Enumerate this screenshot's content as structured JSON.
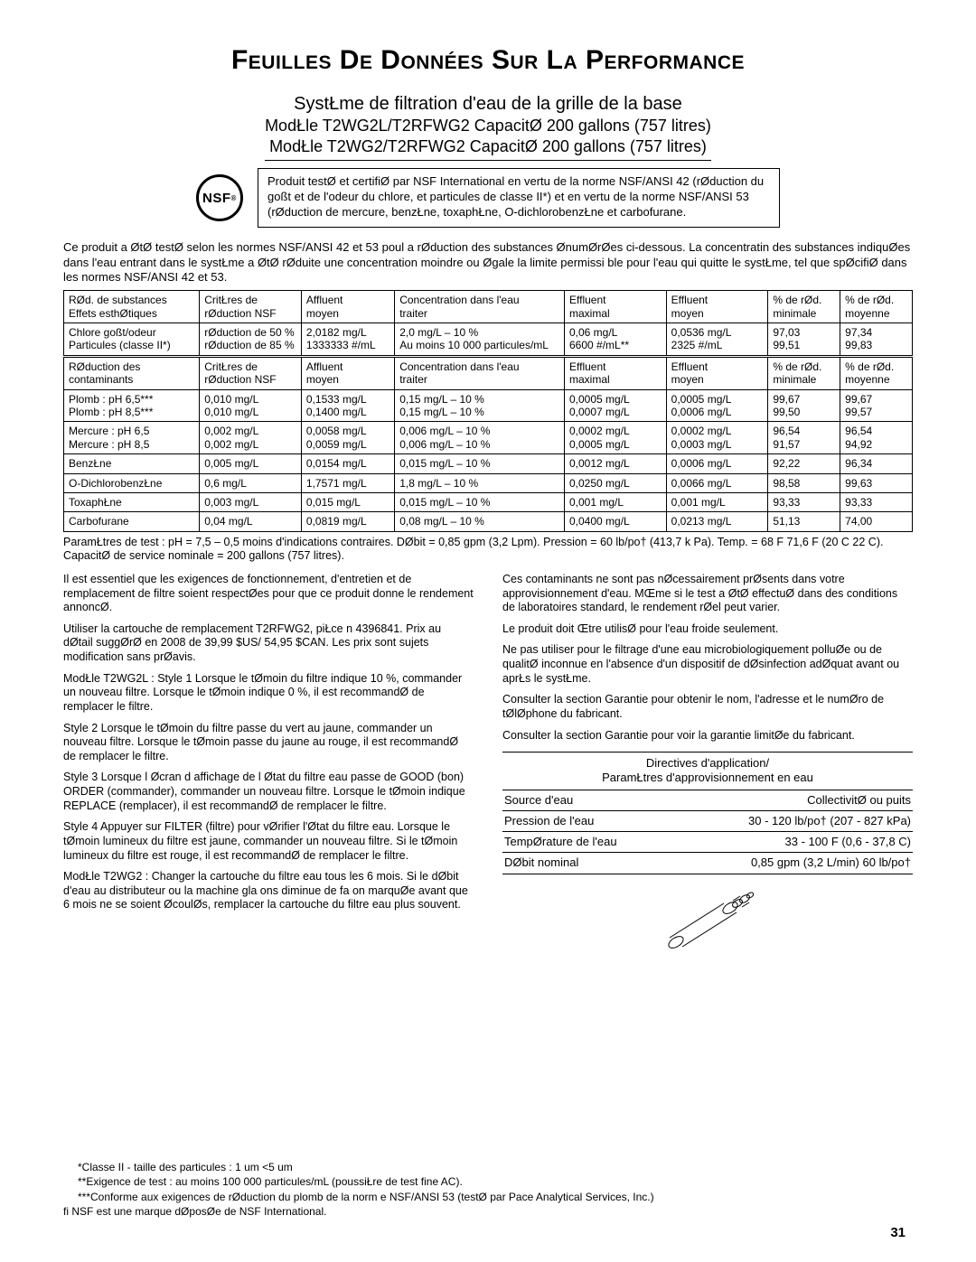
{
  "title": "Feuilles De Données Sur La Performance",
  "subtitle": {
    "line1": "SystŁme de filtration d'eau de la grille de la base",
    "line2": "ModŁle T2WG2L/T2RFWG2 CapacitØ 200 gallons (757 litres)",
    "line3": "ModŁle T2WG2/T2RFWG2 CapacitØ 200 gallons (757 litres)"
  },
  "nsf_label": "NSF",
  "cert_text": "Produit testØ et certifiØ par NSF International en vertu de la norme NSF/ANSI 42 (rØduction du goßt et de l'odeur du chlore, et particules de classe II*) et en vertu de la norme NSF/ANSI 53 (rØduction de mercure, benzŁne, toxaphŁne, O-dichlorobenzŁne et carbofurane.",
  "intro": "Ce produit a ØtØ testØ selon les normes NSF/ANSI 42 et 53 poul a rØduction des substances ØnumØrØes ci-dessous. La concentratin des substances indiquØes dans l'eau entrant dans le systŁme a ØtØ rØduite   une concentration moindre ou Øgale   la limite permissi ble pour l'eau qui quitte le systŁme, tel que spØcifiØ dans les normes NSF/ANSI 42 et 53.",
  "table1": {
    "headers": [
      "RØd. de substances\nEffets esthØtiques",
      "CritŁres de\nrØduction NSF",
      "Affluent\nmoyen",
      "Concentration dans l'eau\n  traiter",
      "Effluent\nmaximal",
      "Effluent\nmoyen",
      "% de rØd.\nminimale",
      "% de rØd.\nmoyenne"
    ],
    "rows": [
      [
        "Chlore goßt/odeur\nParticules (classe II*)",
        "rØduction de 50 %\nrØduction de 85 %",
        "2,0182 mg/L\n1333333 #/mL",
        "2,0 mg/L – 10 %\nAu moins 10 000 particules/mL",
        "0,06 mg/L\n6600 #/mL**",
        "0,0536 mg/L\n2325 #/mL",
        "97,03\n99,51",
        "97,34\n99,83"
      ]
    ]
  },
  "table2": {
    "headers": [
      "RØduction des\ncontaminants",
      "CritŁres de\nrØduction NSF",
      "Affluent\nmoyen",
      "Concentration dans l'eau\n  traiter",
      "Effluent\nmaximal",
      "Effluent\nmoyen",
      "% de rØd.\nminimale",
      "% de rØd.\nmoyenne"
    ],
    "rows": [
      [
        "Plomb :    pH 6,5***\nPlomb :    pH 8,5***",
        "0,010 mg/L\n0,010 mg/L",
        "0,1533 mg/L\n0,1400 mg/L",
        "0,15 mg/L – 10 %\n0,15 mg/L – 10 %",
        "0,0005 mg/L\n0,0007 mg/L",
        "0,0005 mg/L\n0,0006 mg/L",
        "99,67\n99,50",
        "99,67\n99,57"
      ],
      [
        "Mercure :    pH 6,5\nMercure :    pH 8,5",
        "0,002 mg/L\n0,002 mg/L",
        "0,0058 mg/L\n0,0059 mg/L",
        "0,006 mg/L – 10 %\n0,006 mg/L – 10 %",
        "0,0002 mg/L\n0,0005 mg/L",
        "0,0002 mg/L\n0,0003 mg/L",
        "96,54\n91,57",
        "96,54\n94,92"
      ],
      [
        "BenzŁne",
        "0,005 mg/L",
        "0,0154 mg/L",
        "0,015 mg/L – 10 %",
        "0,0012 mg/L",
        "0,0006 mg/L",
        "92,22",
        "96,34"
      ],
      [
        "O-DichlorobenzŁne",
        "0,6 mg/L",
        "1,7571 mg/L",
        "1,8 mg/L – 10 %",
        "0,0250 mg/L",
        "0,0066 mg/L",
        "98,58",
        "99,63"
      ],
      [
        "ToxaphŁne",
        "0,003 mg/L",
        "0,015 mg/L",
        "0,015 mg/L – 10 %",
        "0,001 mg/L",
        "0,001 mg/L",
        "93,33",
        "93,33"
      ],
      [
        "Carbofurane",
        "0,04 mg/L",
        "0,0819 mg/L",
        "0,08 mg/L – 10 %",
        "0,0400 mg/L",
        "0,0213 mg/L",
        "51,13",
        "74,00"
      ]
    ]
  },
  "col_widths": [
    "16%",
    "12%",
    "11%",
    "20%",
    "12%",
    "12%",
    "8.5%",
    "8.5%"
  ],
  "test_params": "ParamŁtres de test : pH = 7,5 – 0,5   moins d'indications contraires. DØbit = 0,85 gpm (3,2 Lpm). Pression = 60 lb/po† (413,7 k Pa). Temp. = 68 F   71,6 F (20 C   22 C). CapacitØ de service nominale = 200 gallons (757 litres).",
  "left_col": [
    "Il est essentiel que les exigences de fonctionnement, d'entretien et de remplacement de filtre soient respectØes pour que ce produit donne le rendement annoncØ.",
    "Utiliser la cartouche de remplacement T2RFWG2, piŁce n  4396841. Prix au dØtail suggØrØ en 2008 de 39,99 $US/ 54,95 $CAN. Les prix sont sujets   modification sans prØavis.",
    "ModŁle T2WG2L : Style 1   Lorsque le tØmoin du filtre indique 10 %, commander un nouveau filtre. Lorsque le tØmoin indique 0 %, il est recommandØ de remplacer le filtre.",
    "Style 2   Lorsque le tØmoin du filtre passe du vert au jaune, commander un nouveau filtre. Lorsque le tØmoin passe du jaune au rouge, il est recommandØ de remplacer le filtre.",
    "Style 3   Lorsque l Øcran d affichage de l Øtat du filtre   eau passe de  GOOD  (bon)    ORDER  (commander), commander un nouveau filtre. Lorsque le tØmoin indique  REPLACE  (remplacer), il est recommandØ de remplacer le filtre.",
    "Style 4   Appuyer sur FILTER (filtre) pour vØrifier l'Øtat du filtre   eau. Lorsque le tØmoin lumineux du filtre est jaune, commander un nouveau filtre. Si le tØmoin lumineux du filtre est rouge, il est recommandØ de remplacer le filtre.",
    "ModŁle T2WG2 : Changer la cartouche du filtre   eau tous les 6 mois. Si le dØbit d'eau au distributeur ou   la machine gla ons diminue de fa on marquØe avant que 6 mois ne se soient ØcoulØs, remplacer la cartouche du filtre   eau plus souvent."
  ],
  "right_col": [
    "Ces contaminants ne sont pas nØcessairement prØsents dans votre approvisionnement d'eau. MŒme si le test a ØtØ effectuØ dans des conditions de laboratoires standard, le rendement rØel peut varier.",
    "Le produit doit Œtre utilisØ pour l'eau froide seulement.",
    "Ne pas utiliser pour le filtrage d'une eau microbiologiquement polluØe ou de qualitØ inconnue en l'absence d'un dispositif de dØsinfection adØquat avant ou aprŁs le systŁme.",
    "Consulter la section  Garantie  pour obtenir le nom, l'adresse et le numØro de tØlØphone du fabricant.",
    "Consulter la section  Garantie  pour voir la garantie limitØe du fabricant."
  ],
  "app_header": "Directives d'application/\nParamŁtres d'approvisionnement en eau",
  "app_rows": [
    [
      "Source d'eau",
      "CollectivitØ ou puits"
    ],
    [
      "Pression de l'eau",
      "30 - 120 lb/po† (207 - 827 kPa)"
    ],
    [
      "TempØrature de l'eau",
      "33  - 100 F (0,6  - 37,8 C)"
    ],
    [
      "DØbit nominal",
      "0,85 gpm (3,2 L/min)   60 lb/po†"
    ]
  ],
  "footnotes": {
    "f1": "*Classe II - taille des particules : 1 um   <5 um",
    "f2": "**Exigence de test : au moins 100 000 particules/mL (poussiŁre de test fine AC).",
    "f3": "***Conforme aux exigences de rØduction du plomb de la norm e NSF/ANSI 53 (testØ par Pace Analytical Services, Inc.)",
    "f4": "fi NSF est une marque dØposØe de NSF International."
  },
  "page_number": "31",
  "colors": {
    "text": "#000000",
    "bg": "#ffffff",
    "border": "#000000"
  }
}
